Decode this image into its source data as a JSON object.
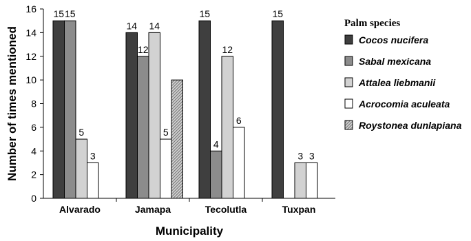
{
  "chart_data": {
    "type": "bar",
    "categories": [
      "Alvarado",
      "Jamapa",
      "Tecolutla",
      "Tuxpan"
    ],
    "series": [
      {
        "name": "Cocos nucifera",
        "color": "#3f3f3f",
        "pattern": "solid",
        "values": [
          15,
          14,
          15,
          15
        ]
      },
      {
        "name": "Sabal mexicana",
        "color": "#8c8c8c",
        "pattern": "solid",
        "values": [
          15,
          12,
          4,
          null
        ]
      },
      {
        "name": "Attalea liebmanii",
        "color": "#d2d2d2",
        "pattern": "solid",
        "values": [
          5,
          14,
          12,
          3
        ]
      },
      {
        "name": "Acrocomia aculeata",
        "color": "#ffffff",
        "pattern": "solid",
        "values": [
          3,
          5,
          6,
          3
        ]
      },
      {
        "name": "Roystonea dunlapiana",
        "color": "#9a9a9a",
        "pattern": "hatched",
        "values": [
          null,
          10,
          null,
          null
        ]
      }
    ],
    "data_labels": [
      [
        15,
        14,
        15,
        15
      ],
      [
        15,
        12,
        4,
        null
      ],
      [
        5,
        14,
        12,
        3
      ],
      [
        3,
        5,
        6,
        3
      ],
      [
        null,
        null,
        null,
        null
      ]
    ],
    "xlabel": "Municipality",
    "ylabel": "Number of times mentioned",
    "ylim": [
      0,
      16
    ],
    "yticks": [
      0,
      2,
      4,
      6,
      8,
      10,
      12,
      14,
      16
    ],
    "legend_title": "Palm species",
    "legend_position": "right",
    "grid": false
  }
}
